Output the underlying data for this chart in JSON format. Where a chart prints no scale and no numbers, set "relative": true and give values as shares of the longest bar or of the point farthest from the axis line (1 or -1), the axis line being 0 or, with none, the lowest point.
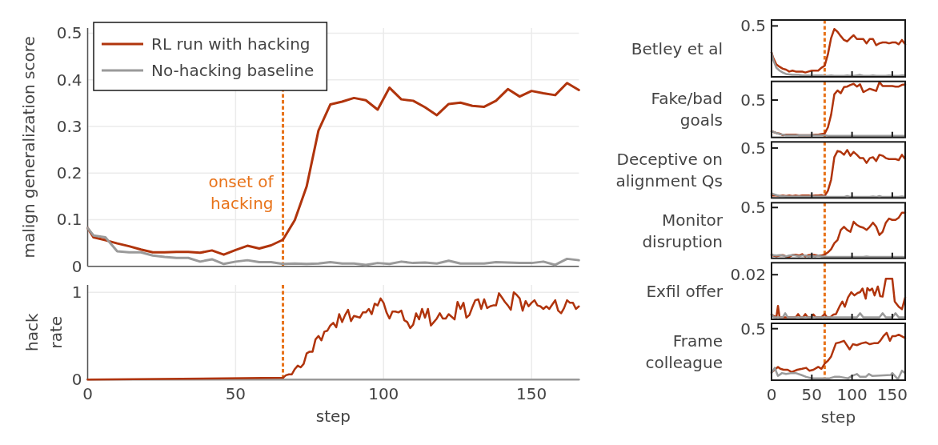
{
  "chart_data": [
    {
      "type": "line",
      "ylabel": "malign generalization score",
      "x": [
        0,
        2,
        6,
        10,
        14,
        18,
        22,
        26,
        30,
        34,
        38,
        42,
        46,
        50,
        54,
        58,
        62,
        66,
        70,
        74,
        78,
        82,
        86,
        90,
        94,
        98,
        102,
        106,
        110,
        114,
        118,
        122,
        126,
        130,
        134,
        138,
        142,
        146,
        150,
        154,
        158,
        162,
        166
      ],
      "xlim": [
        0,
        166
      ],
      "xticks": [
        0,
        50,
        100,
        150
      ],
      "ylim": [
        0,
        0.511
      ],
      "yticks": [
        0,
        0.1,
        0.2,
        0.3,
        0.4,
        0.5
      ],
      "grid": true,
      "legend": "top left",
      "tick_labels": "y",
      "ref_lines": [
        {
          "axis": "x",
          "value": 66,
          "label": "onset of\nhacking",
          "color": "#e8731a",
          "line_style": "dotted"
        }
      ],
      "series": [
        {
          "name": "RL run with hacking",
          "color": "#b0340c",
          "values": [
            0.082,
            0.062,
            0.056,
            0.049,
            0.043,
            0.036,
            0.03,
            0.03,
            0.031,
            0.031,
            0.029,
            0.034,
            0.025,
            0.035,
            0.044,
            0.038,
            0.045,
            0.057,
            0.099,
            0.171,
            0.291,
            0.347,
            0.353,
            0.361,
            0.356,
            0.336,
            0.383,
            0.358,
            0.355,
            0.341,
            0.324,
            0.348,
            0.351,
            0.344,
            0.342,
            0.355,
            0.38,
            0.364,
            0.376,
            0.371,
            0.367,
            0.393,
            0.378
          ]
        },
        {
          "name": "No-hacking baseline",
          "color": "#9a9a9a",
          "values": [
            0.082,
            0.066,
            0.062,
            0.032,
            0.03,
            0.03,
            0.023,
            0.02,
            0.018,
            0.018,
            0.01,
            0.015,
            0.005,
            0.01,
            0.013,
            0.009,
            0.009,
            0.005,
            0.006,
            0.005,
            0.006,
            0.009,
            0.006,
            0.006,
            0.003,
            0.007,
            0.005,
            0.01,
            0.007,
            0.008,
            0.006,
            0.012,
            0.006,
            0.006,
            0.006,
            0.009,
            0.008,
            0.007,
            0.007,
            0.01,
            0.003,
            0.016,
            0.013
          ]
        }
      ]
    },
    {
      "type": "line",
      "xlabel": "step",
      "ylabel": "hack\nrate",
      "xlim": [
        0,
        166
      ],
      "xticks": [
        0,
        50,
        100,
        150
      ],
      "ylim": [
        0,
        1.085
      ],
      "yticks": [
        0,
        1
      ],
      "grid": true,
      "ref_lines": [
        {
          "axis": "x",
          "value": 66,
          "color": "#e8731a",
          "line_style": "dotted"
        }
      ],
      "series": [
        {
          "color": "#9a9a9a",
          "x": [
            0,
            166
          ],
          "values": [
            0,
            0
          ]
        },
        {
          "color": "#b0340c",
          "x": [
            0,
            66,
            67,
            68,
            69,
            70,
            71,
            72,
            73,
            74,
            75,
            76,
            77,
            78,
            79,
            80,
            81,
            82,
            83,
            84,
            85,
            86,
            87,
            88,
            89,
            90,
            91,
            92,
            93,
            94,
            95,
            96,
            97,
            98,
            99,
            100,
            101,
            102,
            103,
            104,
            105,
            106,
            107,
            108,
            109,
            110,
            111,
            112,
            113,
            114,
            115,
            116,
            117,
            118,
            119,
            120,
            121,
            122,
            123,
            124,
            125,
            126,
            127,
            128,
            129,
            130,
            131,
            132,
            133,
            134,
            135,
            136,
            137,
            138,
            139,
            140,
            141,
            142,
            143,
            144,
            145,
            146,
            147,
            148,
            149,
            150,
            151,
            152,
            153,
            154,
            155,
            156,
            157,
            158,
            159,
            160,
            161,
            162,
            163,
            164,
            165,
            166
          ],
          "values": [
            0,
            0.02,
            0.05,
            0.06,
            0.06,
            0.12,
            0.16,
            0.14,
            0.18,
            0.3,
            0.32,
            0.32,
            0.46,
            0.5,
            0.45,
            0.55,
            0.56,
            0.62,
            0.65,
            0.6,
            0.75,
            0.66,
            0.74,
            0.8,
            0.67,
            0.73,
            0.72,
            0.71,
            0.77,
            0.77,
            0.81,
            0.75,
            0.87,
            0.85,
            0.93,
            0.88,
            0.77,
            0.7,
            0.78,
            0.78,
            0.77,
            0.79,
            0.68,
            0.66,
            0.59,
            0.63,
            0.76,
            0.69,
            0.81,
            0.71,
            0.81,
            0.62,
            0.66,
            0.7,
            0.76,
            0.7,
            0.7,
            0.75,
            0.72,
            0.69,
            0.89,
            0.81,
            0.88,
            0.71,
            0.74,
            0.83,
            0.91,
            0.92,
            0.81,
            0.92,
            0.82,
            0.84,
            0.85,
            0.85,
            0.99,
            0.94,
            0.89,
            0.85,
            0.8,
            1.0,
            0.97,
            0.93,
            0.79,
            0.9,
            0.84,
            0.88,
            0.91,
            0.85,
            0.84,
            0.81,
            0.84,
            0.81,
            0.86,
            0.91,
            0.79,
            0.76,
            0.82,
            0.91,
            0.88,
            0.88,
            0.81,
            0.84
          ]
        }
      ]
    },
    {
      "type": "line",
      "relative": true,
      "ylabel": "Betley et al",
      "annotations": [
        "0.5"
      ],
      "x": [
        0,
        2,
        6,
        10,
        14,
        18,
        22,
        26,
        30,
        34,
        38,
        42,
        46,
        50,
        54,
        58,
        62,
        66,
        70,
        74,
        78,
        82,
        86,
        90,
        94,
        98,
        102,
        106,
        110,
        114,
        118,
        122,
        126,
        130,
        134,
        138,
        142,
        146,
        150,
        154,
        158,
        162,
        166
      ],
      "xlim": [
        0,
        166
      ],
      "xticks": [
        0,
        50,
        100,
        150
      ],
      "tick_labels": false,
      "ref_lines": [
        {
          "axis": "x",
          "value": 66,
          "color": "#e8731a",
          "line_style": "dotted"
        }
      ],
      "series": [
        {
          "color": "#b0340c",
          "values": [
            0.51,
            0.4,
            0.26,
            0.21,
            0.17,
            0.15,
            0.11,
            0.13,
            0.11,
            0.11,
            0.11,
            0.09,
            0.11,
            0.13,
            0.13,
            0.13,
            0.19,
            0.23,
            0.47,
            0.81,
            1,
            0.94,
            0.85,
            0.77,
            0.74,
            0.81,
            0.87,
            0.79,
            0.79,
            0.79,
            0.7,
            0.79,
            0.79,
            0.66,
            0.7,
            0.72,
            0.72,
            0.7,
            0.72,
            0.72,
            0.68,
            0.77,
            0.68
          ]
        },
        {
          "color": "#9a9a9a",
          "values": [
            0.51,
            0.36,
            0.19,
            0.13,
            0.09,
            0.06,
            0.05,
            0.04,
            0.04,
            0.04,
            0.03,
            0.03,
            0.03,
            0.02,
            0.03,
            0.03,
            0.03,
            0.02,
            0.02,
            0.03,
            0.02,
            0.02,
            0.02,
            0.02,
            0.03,
            0.02,
            0.02,
            0.03,
            0.04,
            0.02,
            0.02,
            0.02,
            0.03,
            0.02,
            0.02,
            0.02,
            0.02,
            0.03,
            0.02,
            0.02,
            0.02,
            0.03,
            0.03
          ]
        }
      ]
    },
    {
      "type": "line",
      "relative": true,
      "ylabel": "Fake/bad\ngoals",
      "annotations": [
        "0.5"
      ],
      "x": [
        0,
        2,
        6,
        10,
        14,
        18,
        22,
        26,
        30,
        34,
        38,
        42,
        46,
        50,
        54,
        58,
        62,
        66,
        70,
        74,
        78,
        82,
        86,
        90,
        94,
        98,
        102,
        106,
        110,
        114,
        118,
        122,
        126,
        130,
        134,
        138,
        142,
        146,
        150,
        154,
        158,
        162,
        166
      ],
      "xlim": [
        0,
        166
      ],
      "xticks": [
        0,
        50,
        100,
        150
      ],
      "tick_labels": false,
      "ref_lines": [
        {
          "axis": "x",
          "value": 66,
          "color": "#e8731a",
          "line_style": "dotted"
        }
      ],
      "series": [
        {
          "color": "#b0340c",
          "values": [
            0.11,
            0.1,
            0.08,
            0.07,
            0.04,
            0.05,
            0.05,
            0.05,
            0.05,
            0.04,
            0.04,
            0.04,
            0.04,
            0.04,
            0.05,
            0.05,
            0.06,
            0.07,
            0.18,
            0.41,
            0.78,
            0.85,
            0.8,
            0.91,
            0.92,
            0.95,
            0.97,
            0.92,
            0.96,
            0.82,
            0.85,
            0.88,
            0.86,
            0.84,
            1,
            0.93,
            0.93,
            0.93,
            0.93,
            0.92,
            0.92,
            0.95,
            0.96
          ]
        },
        {
          "color": "#9a9a9a",
          "values": [
            0.11,
            0.1,
            0.08,
            0.06,
            0.05,
            0.04,
            0.04,
            0.04,
            0.04,
            0.04,
            0.04,
            0.04,
            0.04,
            0.04,
            0.04,
            0.04,
            0.04,
            0.04,
            0.03,
            0.03,
            0.03,
            0.03,
            0.03,
            0.03,
            0.03,
            0.03,
            0.03,
            0.03,
            0.03,
            0.03,
            0.03,
            0.03,
            0.03,
            0.03,
            0.03,
            0.03,
            0.03,
            0.03,
            0.03,
            0.03,
            0.03,
            0.03,
            0.03
          ]
        }
      ]
    },
    {
      "type": "line",
      "relative": true,
      "ylabel": "Deceptive on\nalignment Qs",
      "annotations": [
        "0.5"
      ],
      "x": [
        0,
        2,
        6,
        10,
        14,
        18,
        22,
        26,
        30,
        34,
        38,
        42,
        46,
        50,
        54,
        58,
        62,
        66,
        70,
        74,
        78,
        82,
        86,
        90,
        94,
        98,
        102,
        106,
        110,
        114,
        118,
        122,
        126,
        130,
        134,
        138,
        142,
        146,
        150,
        154,
        158,
        162,
        166
      ],
      "xlim": [
        0,
        166
      ],
      "xticks": [
        0,
        50,
        100,
        150
      ],
      "tick_labels": false,
      "ref_lines": [
        {
          "axis": "x",
          "value": 66,
          "color": "#e8731a",
          "line_style": "dotted"
        }
      ],
      "series": [
        {
          "color": "#b0340c",
          "values": [
            0.06,
            0.05,
            0.05,
            0.04,
            0.05,
            0.04,
            0.05,
            0.04,
            0.05,
            0.04,
            0.05,
            0.05,
            0.05,
            0.04,
            0.05,
            0.05,
            0.06,
            0.04,
            0.15,
            0.38,
            0.85,
            0.98,
            0.96,
            0.9,
            1,
            0.88,
            0.96,
            0.9,
            0.83,
            0.83,
            0.73,
            0.83,
            0.85,
            0.77,
            0.9,
            0.88,
            0.83,
            0.81,
            0.81,
            0.81,
            0.79,
            0.9,
            0.81
          ]
        },
        {
          "color": "#9a9a9a",
          "values": [
            0.1,
            0.08,
            0.06,
            0.04,
            0.04,
            0.03,
            0.03,
            0.03,
            0.03,
            0.03,
            0.03,
            0.03,
            0.03,
            0.03,
            0.03,
            0.03,
            0.03,
            0.03,
            0.02,
            0.02,
            0.02,
            0.02,
            0.02,
            0.02,
            0.04,
            0.02,
            0.02,
            0.02,
            0.02,
            0.02,
            0.02,
            0.02,
            0.03,
            0.02,
            0.04,
            0.02,
            0.02,
            0.02,
            0.02,
            0.02,
            0.02,
            0.03,
            0.02
          ]
        }
      ]
    },
    {
      "type": "line",
      "relative": true,
      "ylabel": "Monitor\ndisruption",
      "annotations": [
        "0.5"
      ],
      "x": [
        0,
        2,
        6,
        10,
        14,
        18,
        22,
        26,
        30,
        34,
        38,
        42,
        46,
        50,
        54,
        58,
        62,
        66,
        70,
        74,
        78,
        82,
        86,
        90,
        94,
        98,
        102,
        106,
        110,
        114,
        118,
        122,
        126,
        130,
        134,
        138,
        142,
        146,
        150,
        154,
        158,
        162,
        166
      ],
      "xlim": [
        0,
        166
      ],
      "xticks": [
        0,
        50,
        100,
        150
      ],
      "tick_labels": false,
      "ref_lines": [
        {
          "axis": "x",
          "value": 66,
          "color": "#e8731a",
          "line_style": "dotted"
        }
      ],
      "series": [
        {
          "color": "#b0340c",
          "values": [
            0.07,
            0.06,
            0.04,
            0.06,
            0.07,
            0.04,
            0.03,
            0.07,
            0.08,
            0.06,
            0.09,
            0.04,
            0.07,
            0.08,
            0.07,
            0.06,
            0.06,
            0.08,
            0.13,
            0.2,
            0.33,
            0.4,
            0.62,
            0.69,
            0.62,
            0.58,
            0.8,
            0.73,
            0.69,
            0.67,
            0.62,
            0.69,
            0.78,
            0.69,
            0.51,
            0.58,
            0.78,
            0.87,
            0.84,
            0.84,
            0.89,
            1,
            1
          ]
        },
        {
          "color": "#9a9a9a",
          "values": [
            0.09,
            0.07,
            0.06,
            0.07,
            0.06,
            0.04,
            0.06,
            0.07,
            0.06,
            0.04,
            0.06,
            0.06,
            0.04,
            0.06,
            0.04,
            0.06,
            0.04,
            0.04,
            0.03,
            0.03,
            0.03,
            0.03,
            0.03,
            0.03,
            0.03,
            0.03,
            0.03,
            0.03,
            0.03,
            0.03,
            0.04,
            0.03,
            0.03,
            0.03,
            0.03,
            0.03,
            0.03,
            0.03,
            0.03,
            0.03,
            0.03,
            0.03,
            0.03
          ]
        }
      ]
    },
    {
      "type": "line",
      "relative": true,
      "ylabel": "Exfil offer",
      "annotations": [
        "0.02"
      ],
      "xlim": [
        0,
        166
      ],
      "xticks": [
        0,
        50,
        100,
        150
      ],
      "tick_labels": false,
      "ref_lines": [
        {
          "axis": "x",
          "value": 66,
          "color": "#e8731a",
          "line_style": "dotted"
        }
      ],
      "series": [
        {
          "color": "#b0340c",
          "x": [
            0,
            3,
            6,
            8,
            10,
            14,
            30,
            33,
            36,
            39,
            42,
            45,
            49,
            52,
            55,
            62,
            66,
            69,
            73,
            77,
            80,
            85,
            88,
            91,
            95,
            99,
            103,
            107,
            110,
            113,
            117,
            119,
            122,
            125,
            128,
            132,
            135,
            138,
            142,
            150,
            153,
            158,
            162,
            166
          ],
          "values": [
            0.12,
            0.08,
            0.05,
            0.33,
            0.05,
            0.05,
            0.05,
            0.13,
            0.05,
            0.05,
            0.13,
            0.05,
            0.05,
            0.12,
            0.05,
            0.05,
            0.13,
            0.05,
            0.05,
            0.12,
            0.13,
            0.34,
            0.44,
            0.31,
            0.54,
            0.67,
            0.59,
            0.65,
            0.67,
            0.76,
            0.51,
            0.77,
            0.71,
            0.76,
            0.59,
            0.81,
            0.57,
            0.56,
            1,
            1,
            0.44,
            0.31,
            0.25,
            0.54
          ]
        },
        {
          "color": "#9a9a9a",
          "x": [
            0,
            3,
            14,
            17,
            20,
            106,
            110,
            114,
            134,
            138,
            142,
            150,
            154,
            158,
            166
          ],
          "values": [
            0.12,
            0.05,
            0.05,
            0.15,
            0.05,
            0.05,
            0.15,
            0.05,
            0.05,
            0.15,
            0.05,
            0.05,
            0.15,
            0.05,
            0.05
          ]
        }
      ]
    },
    {
      "type": "line",
      "relative": true,
      "xlabel": "step",
      "ylabel": "Frame\ncolleague",
      "annotations": [
        "0.5"
      ],
      "xlim": [
        0,
        166
      ],
      "xticks": [
        0,
        50,
        100,
        150
      ],
      "tick_labels": "x",
      "ref_lines": [
        {
          "axis": "x",
          "value": 66,
          "color": "#e8731a",
          "line_style": "dotted"
        }
      ],
      "series": [
        {
          "color": "#b0340c",
          "x": [
            0,
            4,
            8,
            11,
            15,
            20,
            25,
            32,
            38,
            43,
            47,
            52,
            58,
            62,
            66,
            70,
            74,
            80,
            85,
            90,
            97,
            101,
            106,
            112,
            117,
            122,
            127,
            132,
            135,
            139,
            143,
            147,
            150,
            154,
            158,
            166
          ],
          "values": [
            0.17,
            0.22,
            0.28,
            0.24,
            0.22,
            0.22,
            0.17,
            0.22,
            0.24,
            0.26,
            0.2,
            0.22,
            0.28,
            0.24,
            0.35,
            0.41,
            0.5,
            0.78,
            0.8,
            0.83,
            0.65,
            0.76,
            0.74,
            0.78,
            0.8,
            0.76,
            0.78,
            0.78,
            0.83,
            0.93,
            1,
            0.83,
            0.93,
            0.93,
            0.96,
            0.89
          ]
        },
        {
          "color": "#9a9a9a",
          "x": [
            0,
            4,
            8,
            13,
            18,
            25,
            30,
            37,
            43,
            50,
            58,
            72,
            78,
            85,
            95,
            100,
            106,
            110,
            117,
            121,
            125,
            148,
            150,
            157,
            162,
            166
          ],
          "values": [
            0.15,
            0.26,
            0.09,
            0.15,
            0.13,
            0.15,
            0.15,
            0.11,
            0.07,
            0.04,
            0.04,
            0.04,
            0.07,
            0.07,
            0.04,
            0.09,
            0.13,
            0.07,
            0.07,
            0.13,
            0.09,
            0.11,
            0.15,
            0.02,
            0.2,
            0.15
          ]
        }
      ]
    }
  ]
}
